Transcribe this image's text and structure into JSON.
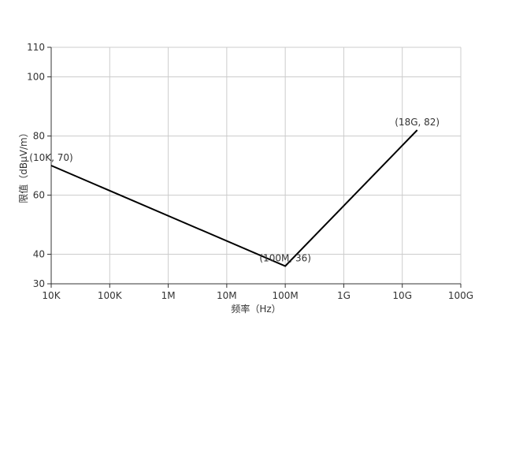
{
  "chart_data": {
    "type": "line",
    "xlabel": "频率（Hz）",
    "ylabel": "限值（dBμV/m）",
    "x_scale": "log",
    "xlim": [
      "10K",
      "100G"
    ],
    "ylim": [
      30,
      110
    ],
    "x_ticks": [
      "10K",
      "100K",
      "1M",
      "10M",
      "100M",
      "1G",
      "10G",
      "100G"
    ],
    "y_ticks": [
      "30",
      "40",
      "60",
      "80",
      "100",
      "110"
    ],
    "grid": true,
    "series": [
      {
        "color": "#000000",
        "points": [
          {
            "x": "10K",
            "y": 70,
            "label": "(10K, 70)"
          },
          {
            "x": "100M",
            "y": 36,
            "label": "(100M, 36)"
          },
          {
            "x": "18G",
            "y": 82,
            "label": "(18G, 82)"
          }
        ]
      }
    ]
  }
}
